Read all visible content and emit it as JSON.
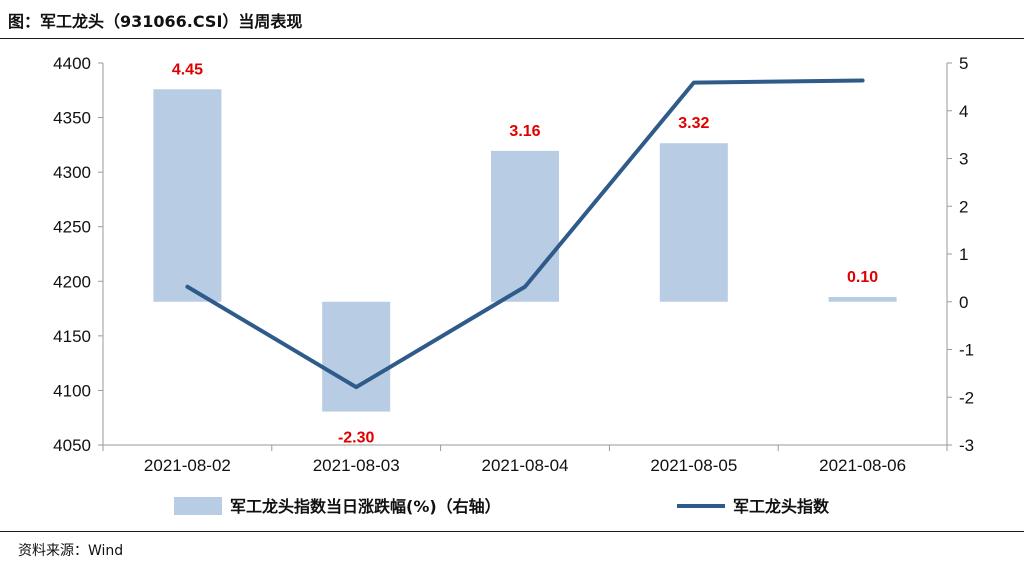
{
  "title": "图：军工龙头（931066.CSI）当周表现",
  "source": "资料来源：Wind",
  "colors": {
    "bar": "#b8cce4",
    "line": "#2f5b8a",
    "label": "#e00000"
  },
  "chart_data": {
    "type": "bar+line",
    "categories": [
      "2021-08-02",
      "2021-08-03",
      "2021-08-04",
      "2021-08-05",
      "2021-08-06"
    ],
    "bar_series": {
      "name": "军工龙头指数当日涨跌幅(%)（右轴）",
      "axis": "right",
      "values": [
        4.45,
        -2.3,
        3.16,
        3.32,
        0.1
      ],
      "labels": [
        "4.45",
        "-2.30",
        "3.16",
        "3.32",
        "0.10"
      ]
    },
    "line_series": {
      "name": "军工龙头指数",
      "axis": "left",
      "values": [
        4195,
        4103,
        4195,
        4382,
        4384
      ]
    },
    "y_left": {
      "min": 4050,
      "max": 4400,
      "ticks": [
        "4400",
        "4350",
        "4300",
        "4250",
        "4200",
        "4150",
        "4100",
        "4050"
      ]
    },
    "y_right": {
      "min": -3,
      "max": 5,
      "ticks": [
        "5",
        "4",
        "3",
        "2",
        "1",
        "0",
        "-1",
        "-2",
        "-3"
      ]
    },
    "grid": false,
    "legend_position": "bottom"
  }
}
